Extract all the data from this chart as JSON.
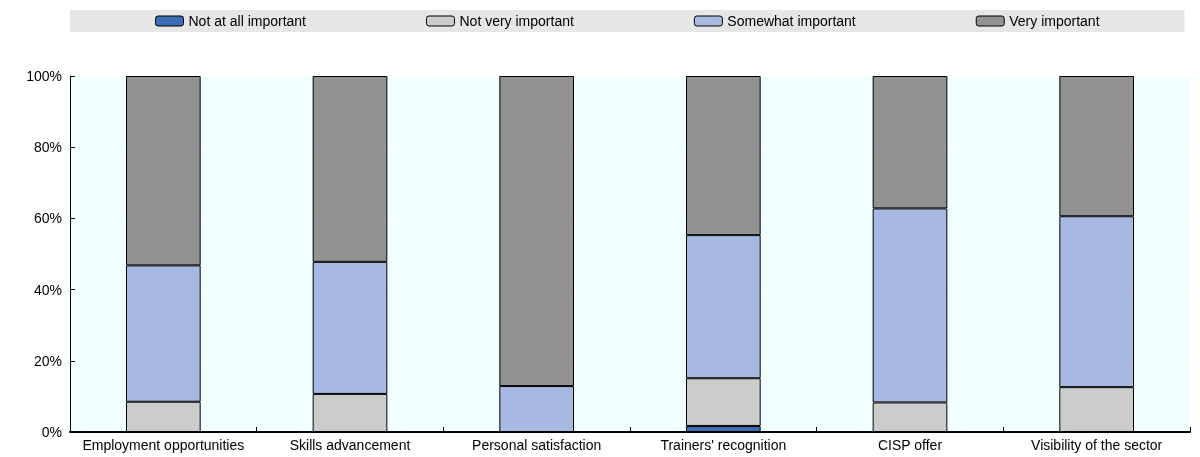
{
  "chart_data": {
    "type": "bar",
    "stacked": true,
    "categories": [
      "Employment opportunities",
      "Skills advancement",
      "Personal satisfaction",
      "Trainers' recognition",
      "CISP offer",
      "Visibility of the sector"
    ],
    "series": [
      {
        "name": "Not at all important",
        "color": "#3c6cb4",
        "values": [
          0,
          0,
          0,
          1.7,
          0,
          0
        ]
      },
      {
        "name": "Not very important",
        "color": "#cccccc",
        "values": [
          8.5,
          10.7,
          0,
          13.4,
          8.3,
          12.6
        ]
      },
      {
        "name": "Somewhat important",
        "color": "#a7b8e2",
        "values": [
          38.3,
          37.1,
          12.9,
          40.2,
          54.5,
          48
        ]
      },
      {
        "name": "Very important",
        "color": "#929292",
        "values": [
          53.2,
          52.2,
          87.1,
          44.7,
          37.2,
          39.4
        ]
      }
    ],
    "ylim": [
      0,
      100
    ],
    "yticks": [
      {
        "value": 0,
        "label": "0%"
      },
      {
        "value": 20,
        "label": "20%"
      },
      {
        "value": 40,
        "label": "40%"
      },
      {
        "value": 60,
        "label": "60%"
      },
      {
        "value": 80,
        "label": "80%"
      },
      {
        "value": 100,
        "label": "100%"
      }
    ],
    "grid": true,
    "legend": "top"
  }
}
